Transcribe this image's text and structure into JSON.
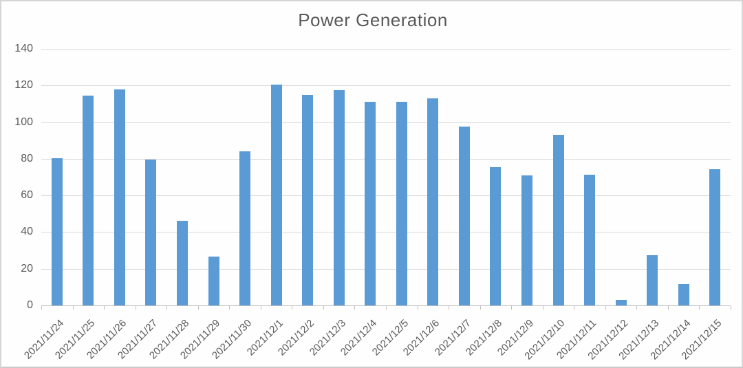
{
  "chart_data": {
    "type": "bar",
    "title": "Power Generation",
    "categories": [
      "2021/11/24",
      "2021/11/25",
      "2021/11/26",
      "2021/11/27",
      "2021/11/28",
      "2021/11/29",
      "2021/11/30",
      "2021/12/1",
      "2021/12/2",
      "2021/12/3",
      "2021/12/4",
      "2021/12/5",
      "2021/12/6",
      "2021/12/7",
      "2021/12/8",
      "2021/12/9",
      "2021/12/10",
      "2021/12/11",
      "2021/12/12",
      "2021/12/13",
      "2021/12/14",
      "2021/12/15"
    ],
    "values": [
      80.5,
      114.5,
      118,
      79.5,
      46,
      26.5,
      84,
      120.5,
      115,
      117.5,
      111,
      111,
      113,
      97.5,
      75.5,
      71,
      93,
      71.5,
      3,
      27.5,
      11.5,
      74.5
    ],
    "xlabel": "",
    "ylabel": "",
    "ylim": [
      0,
      140
    ],
    "yticks": [
      0,
      20,
      40,
      60,
      80,
      100,
      120,
      140
    ],
    "grid": true,
    "legend": "none",
    "colors": {
      "bar": "#5b9bd5",
      "gridline": "#d9d9d9",
      "axis": "#bfbfbf",
      "tick_label": "#595959",
      "title": "#595959"
    }
  }
}
